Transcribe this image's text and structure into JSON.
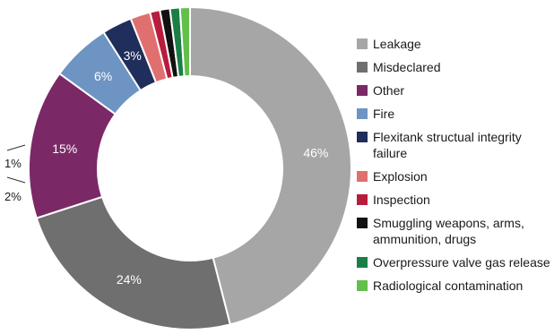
{
  "chart_data": {
    "type": "pie",
    "donut": true,
    "legend_position": "right",
    "slices": [
      {
        "label": "Leakage",
        "value": 46,
        "display": "46%",
        "color": "#a6a6a6"
      },
      {
        "label": "Misdeclared",
        "value": 24,
        "display": "24%",
        "color": "#6f6f6f"
      },
      {
        "label": "Other",
        "value": 15,
        "display": "15%",
        "color": "#7b2966"
      },
      {
        "label": "Fire",
        "value": 6,
        "display": "6%",
        "color": "#6d94c3"
      },
      {
        "label": "Flexitank structual integrity failure",
        "value": 3,
        "display": "3%",
        "color": "#1f2e5b"
      },
      {
        "label": "Explosion",
        "value": 2,
        "display": "2%",
        "color": "#e07070"
      },
      {
        "label": "Inspection",
        "value": 1,
        "display": "",
        "color": "#b81c3c"
      },
      {
        "label": "Smuggling weapons, arms, ammunition, drugs",
        "value": 1,
        "display": "",
        "color": "#111111"
      },
      {
        "label": "Overpressure valve gas release",
        "value": 1,
        "display": "",
        "color": "#1a7f45"
      },
      {
        "label": "Radiological contamination",
        "value": 1,
        "display": "",
        "color": "#62c04a"
      }
    ],
    "bracket_label": "1%"
  }
}
